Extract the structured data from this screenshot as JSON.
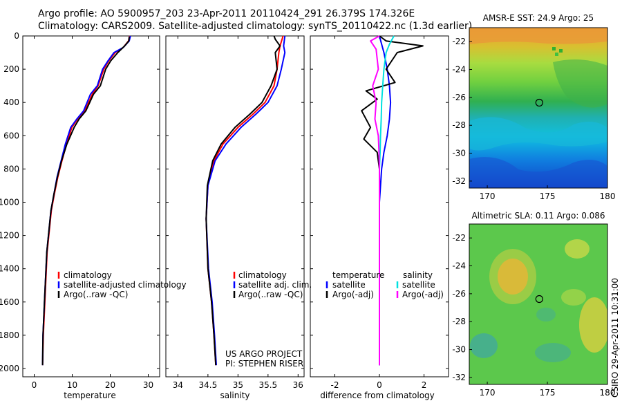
{
  "title_line1": "Argo profile: AO 5900957_203 23-Apr-2011 20110424_291 26.379S 174.326E",
  "title_line2": "Climatology: CARS2009. Satellite-adjusted climatology: synTS_20110422.nc (1.3d earlier)",
  "credit_project": "US ARGO PROJECT",
  "credit_pi": "PI: STEPHEN RISER",
  "side_label": "CSIRO 29-Apr-2011 10:31:00",
  "colors": {
    "climatology": "#ff0000",
    "satellite_adjusted": "#0000ff",
    "argo": "#000000",
    "sal_satellite": "#00e0e0",
    "sal_argo": "#ff00ff"
  },
  "chart_data": [
    {
      "id": "temperature",
      "type": "line",
      "xlabel": "temperature",
      "xlim": [
        -3,
        33
      ],
      "xticks": [
        0,
        10,
        20,
        30
      ],
      "ylim": [
        0,
        2050
      ],
      "yticks": [
        0,
        200,
        400,
        600,
        800,
        1000,
        1200,
        1400,
        1600,
        1800,
        2000
      ],
      "y_inverted": true,
      "legend": [
        "climatology",
        "satellite-adjusted climatology",
        "Argo(..raw -QC)"
      ],
      "series": [
        {
          "name": "climatology",
          "color": "#ff0000",
          "x": [
            25.1,
            24.8,
            23.4,
            21.3,
            19.6,
            18.3,
            16.8,
            15.3,
            13.3,
            11.4,
            9.9,
            8.5,
            7.3,
            6.2,
            5.3,
            4.5,
            3.4,
            2.8,
            2.4,
            2.2
          ],
          "y": [
            0,
            30,
            70,
            100,
            150,
            200,
            300,
            350,
            450,
            500,
            550,
            650,
            750,
            850,
            950,
            1050,
            1300,
            1600,
            1800,
            1980
          ]
        },
        {
          "name": "satellite-adjusted climatology",
          "color": "#0000ff",
          "x": [
            25.3,
            25.0,
            23.4,
            21.0,
            19.4,
            18.0,
            16.6,
            14.8,
            13.0,
            11.2,
            9.6,
            8.2,
            7.1,
            6.0,
            5.2,
            4.4,
            3.3,
            2.7,
            2.3,
            2.2
          ],
          "y": [
            0,
            30,
            70,
            100,
            150,
            200,
            300,
            350,
            450,
            500,
            550,
            650,
            750,
            850,
            950,
            1050,
            1300,
            1600,
            1800,
            1980
          ]
        },
        {
          "name": "Argo(..raw -QC)",
          "color": "#000000",
          "x": [
            25.0,
            24.9,
            23.8,
            22.0,
            20.1,
            18.8,
            17.4,
            15.6,
            13.6,
            11.8,
            10.5,
            8.6,
            7.2,
            6.1,
            5.2,
            4.4,
            3.3,
            2.7,
            2.3,
            2.2
          ],
          "y": [
            5,
            30,
            60,
            100,
            150,
            200,
            300,
            350,
            450,
            500,
            550,
            650,
            750,
            850,
            950,
            1050,
            1300,
            1600,
            1800,
            1980
          ]
        }
      ]
    },
    {
      "id": "salinity",
      "type": "line",
      "xlabel": "salinity",
      "xlim": [
        33.8,
        36.1
      ],
      "xticks": [
        34,
        34.5,
        35,
        35.5,
        36
      ],
      "ylim": [
        0,
        2050
      ],
      "y_inverted": true,
      "legend": [
        "climatology",
        "satellite adj. clim.",
        "Argo(..raw -QC)"
      ],
      "series": [
        {
          "name": "climatology",
          "color": "#ff0000",
          "x": [
            35.75,
            35.7,
            35.68,
            35.65,
            35.6,
            35.45,
            35.25,
            35.0,
            34.75,
            34.6,
            34.5,
            34.47,
            34.5,
            34.56,
            34.6,
            34.63
          ],
          "y": [
            0,
            60,
            100,
            200,
            300,
            400,
            470,
            550,
            650,
            750,
            900,
            1100,
            1400,
            1600,
            1800,
            1980
          ]
        },
        {
          "name": "satellite adj. clim.",
          "color": "#0000ff",
          "x": [
            35.78,
            35.76,
            35.78,
            35.72,
            35.65,
            35.5,
            35.3,
            35.05,
            34.8,
            34.62,
            34.5,
            34.47,
            34.51,
            34.57,
            34.61,
            34.64
          ],
          "y": [
            0,
            60,
            100,
            200,
            300,
            400,
            470,
            550,
            650,
            750,
            900,
            1100,
            1400,
            1600,
            1800,
            1980
          ]
        },
        {
          "name": "Argo(..raw -QC)",
          "color": "#000000",
          "x": [
            35.6,
            35.62,
            35.7,
            35.62,
            35.65,
            35.55,
            35.4,
            35.2,
            34.95,
            34.72,
            34.58,
            34.49,
            34.47,
            34.5,
            34.56,
            34.6,
            34.63
          ],
          "y": [
            0,
            20,
            60,
            100,
            200,
            300,
            400,
            470,
            550,
            650,
            750,
            900,
            1100,
            1400,
            1600,
            1800,
            1980
          ]
        }
      ]
    },
    {
      "id": "difference",
      "type": "line",
      "xlabel": "difference from climatology",
      "xlim": [
        -3.1,
        3.1
      ],
      "xticks": [
        -2,
        0,
        2
      ],
      "ylim": [
        0,
        2050
      ],
      "y_inverted": true,
      "legend": [
        "temperature",
        "satellite",
        "Argo(-adj)",
        "salinity",
        "satellite",
        "Argo(-adj)"
      ],
      "series": [
        {
          "name": "temperature satellite",
          "color": "#0000ff",
          "x": [
            0.0,
            0.1,
            0.2,
            0.35,
            0.45,
            0.5,
            0.45,
            0.35,
            0.2,
            0.1,
            0.05,
            0.0,
            0.0,
            0.0
          ],
          "y": [
            0,
            50,
            100,
            200,
            300,
            400,
            500,
            600,
            700,
            800,
            900,
            1000,
            1500,
            1980
          ]
        },
        {
          "name": "temperature Argo(-adj)",
          "color": "#000000",
          "x": [
            0.0,
            0.3,
            1.95,
            0.8,
            0.3,
            0.7,
            -0.6,
            -0.1,
            -0.8,
            -0.4,
            -0.7,
            -0.1,
            0.0,
            0.0,
            0.0,
            0.0
          ],
          "y": [
            0,
            30,
            60,
            100,
            200,
            280,
            330,
            380,
            450,
            550,
            620,
            700,
            800,
            1000,
            1500,
            1980
          ]
        },
        {
          "name": "salinity satellite",
          "color": "#00e0e0",
          "x": [
            0.65,
            0.45,
            0.3,
            0.2,
            0.15,
            0.1,
            0.08,
            0.05,
            0.03,
            0.0,
            0.0,
            0.0
          ],
          "y": [
            0,
            50,
            100,
            200,
            300,
            400,
            500,
            600,
            700,
            800,
            1500,
            1980
          ]
        },
        {
          "name": "salinity Argo(-adj)",
          "color": "#ff00ff",
          "x": [
            0.0,
            -0.4,
            -0.15,
            -0.05,
            -0.3,
            -0.15,
            -0.2,
            -0.05,
            -0.02,
            0.0,
            0.0
          ],
          "y": [
            0,
            30,
            80,
            200,
            300,
            400,
            500,
            600,
            700,
            800,
            1980
          ]
        }
      ]
    },
    {
      "id": "sst_map",
      "type": "heatmap",
      "title": "AMSR-E SST: 24.9 Argo: 25",
      "xlim": [
        168.5,
        180
      ],
      "ylim": [
        -32.5,
        -21
      ],
      "xticks": [
        170,
        175,
        180
      ],
      "yticks": [
        -22,
        -24,
        -26,
        -28,
        -30,
        -32
      ],
      "marker": {
        "lon": 174.326,
        "lat": -26.379
      }
    },
    {
      "id": "sla_map",
      "type": "heatmap",
      "title": "Altimetric SLA: 0.11 Argo: 0.086",
      "xlim": [
        168.5,
        180
      ],
      "ylim": [
        -32.5,
        -21
      ],
      "xticks": [
        170,
        175,
        180
      ],
      "yticks": [
        -22,
        -24,
        -26,
        -28,
        -30,
        -32
      ],
      "marker": {
        "lon": 174.326,
        "lat": -26.379
      }
    }
  ]
}
